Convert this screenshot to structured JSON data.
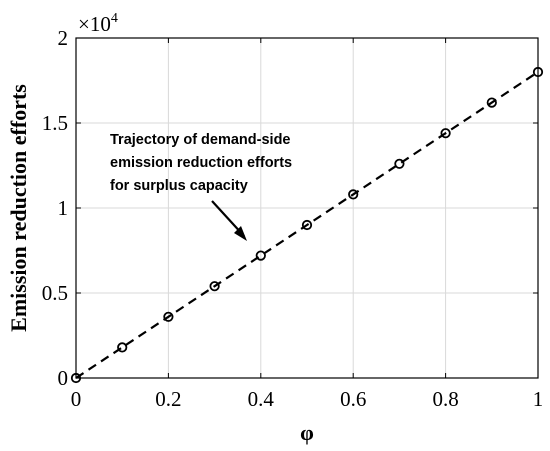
{
  "chart_data": {
    "type": "line",
    "x": [
      0,
      0.1,
      0.2,
      0.3,
      0.4,
      0.5,
      0.6,
      0.7,
      0.8,
      0.9,
      1.0
    ],
    "series": [
      {
        "values": [
          0,
          1800,
          3600,
          5400,
          7200,
          9000,
          10800,
          12600,
          14400,
          16200,
          18000
        ],
        "line_style": "dashed",
        "marker": "circle",
        "color": "#000000"
      }
    ],
    "xlabel": "φ",
    "ylabel": "Emission reduction efforts",
    "xlim": [
      0,
      1
    ],
    "ylim": [
      0,
      20000
    ],
    "x_ticks": [
      "0",
      "0.2",
      "0.4",
      "0.6",
      "0.8",
      "1"
    ],
    "y_ticks": [
      "0",
      "0.5",
      "1",
      "1.5",
      "2"
    ],
    "y_multiplier": {
      "base": "×10",
      "exponent": "4"
    },
    "grid": true,
    "annotation": {
      "lines": [
        "Trajectory of demand-side",
        "emission reduction efforts",
        "for surplus capacity"
      ]
    }
  }
}
